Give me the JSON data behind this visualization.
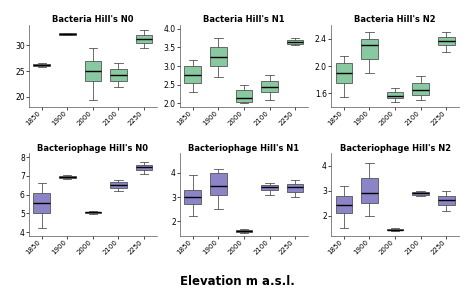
{
  "titles": [
    "Bacteria Hill's N0",
    "Bacteria Hill's N1",
    "Bacteria Hill's N2",
    "Bacteriophage Hill's N0",
    "Bacteriophage Hill's N1",
    "Bacteriophage Hill's N2"
  ],
  "xlabel": "Elevation m a.s.l.",
  "categories": [
    "1850",
    "1900",
    "2000",
    "2100",
    "2250"
  ],
  "bacteria_color": "#88c9a1",
  "bacteriophage_color": "#8b84c7",
  "background_color": "#ffffff",
  "plots": [
    {
      "name": "Bacteria Hill's N0",
      "ylim": [
        18,
        34
      ],
      "yticks": [
        20,
        25,
        30
      ],
      "boxes": [
        {
          "med": 26.2,
          "q1": 26.0,
          "q3": 26.4,
          "whislo": 25.8,
          "whishi": 26.6
        },
        {
          "med": 32.2,
          "q1": 32.1,
          "q3": 32.4,
          "whislo": 32.0,
          "whishi": 32.5
        },
        {
          "med": 25.0,
          "q1": 23.0,
          "q3": 27.0,
          "whislo": 19.5,
          "whishi": 29.5
        },
        {
          "med": 24.3,
          "q1": 23.0,
          "q3": 25.5,
          "whislo": 22.0,
          "whishi": 26.5
        },
        {
          "med": 31.2,
          "q1": 30.5,
          "q3": 32.0,
          "whislo": 29.5,
          "whishi": 33.0
        }
      ]
    },
    {
      "name": "Bacteria Hill's N1",
      "ylim": [
        1.9,
        4.1
      ],
      "yticks": [
        2.0,
        2.5,
        3.0,
        3.5,
        4.0
      ],
      "boxes": [
        {
          "med": 2.75,
          "q1": 2.55,
          "q3": 3.0,
          "whislo": 2.3,
          "whishi": 3.15
        },
        {
          "med": 3.25,
          "q1": 3.0,
          "q3": 3.5,
          "whislo": 2.7,
          "whishi": 3.75
        },
        {
          "med": 2.15,
          "q1": 2.05,
          "q3": 2.35,
          "whislo": 2.0,
          "whishi": 2.5
        },
        {
          "med": 2.45,
          "q1": 2.3,
          "q3": 2.6,
          "whislo": 2.1,
          "whishi": 2.75
        },
        {
          "med": 3.65,
          "q1": 3.6,
          "q3": 3.7,
          "whislo": 3.55,
          "whishi": 3.75
        }
      ]
    },
    {
      "name": "Bacteria Hill's N2",
      "ylim": [
        1.4,
        2.6
      ],
      "yticks": [
        1.6,
        2.0,
        2.4
      ],
      "boxes": [
        {
          "med": 1.9,
          "q1": 1.75,
          "q3": 2.05,
          "whislo": 1.55,
          "whishi": 2.15
        },
        {
          "med": 2.3,
          "q1": 2.1,
          "q3": 2.4,
          "whislo": 1.9,
          "whishi": 2.5
        },
        {
          "med": 1.57,
          "q1": 1.53,
          "q3": 1.62,
          "whislo": 1.48,
          "whishi": 1.68
        },
        {
          "med": 1.65,
          "q1": 1.58,
          "q3": 1.75,
          "whislo": 1.5,
          "whishi": 1.85
        },
        {
          "med": 2.37,
          "q1": 2.3,
          "q3": 2.42,
          "whislo": 2.2,
          "whishi": 2.5
        }
      ]
    },
    {
      "name": "Bacteriophage Hill's N0",
      "ylim": [
        3.8,
        8.2
      ],
      "yticks": [
        4,
        5,
        6,
        7,
        8
      ],
      "boxes": [
        {
          "med": 5.55,
          "q1": 5.0,
          "q3": 6.1,
          "whislo": 4.2,
          "whishi": 6.6
        },
        {
          "med": 6.95,
          "q1": 6.9,
          "q3": 7.0,
          "whislo": 6.85,
          "whishi": 7.05
        },
        {
          "med": 5.05,
          "q1": 5.0,
          "q3": 5.1,
          "whislo": 4.95,
          "whishi": 5.15
        },
        {
          "med": 6.5,
          "q1": 6.35,
          "q3": 6.65,
          "whislo": 6.2,
          "whishi": 6.8
        },
        {
          "med": 7.45,
          "q1": 7.3,
          "q3": 7.6,
          "whislo": 7.1,
          "whishi": 7.75
        }
      ]
    },
    {
      "name": "Bacteriophage Hill's N1",
      "ylim": [
        1.4,
        4.8
      ],
      "yticks": [
        2,
        3,
        4
      ],
      "boxes": [
        {
          "med": 3.0,
          "q1": 2.7,
          "q3": 3.3,
          "whislo": 2.2,
          "whishi": 3.9
        },
        {
          "med": 3.45,
          "q1": 3.1,
          "q3": 4.0,
          "whislo": 2.5,
          "whishi": 4.15
        },
        {
          "med": 1.6,
          "q1": 1.55,
          "q3": 1.65,
          "whislo": 1.5,
          "whishi": 1.7
        },
        {
          "med": 3.4,
          "q1": 3.3,
          "q3": 3.5,
          "whislo": 3.1,
          "whishi": 3.6
        },
        {
          "med": 3.4,
          "q1": 3.2,
          "q3": 3.55,
          "whislo": 3.0,
          "whishi": 3.7
        }
      ]
    },
    {
      "name": "Bacteriophage Hill's N2",
      "ylim": [
        1.2,
        4.5
      ],
      "yticks": [
        2,
        3,
        4
      ],
      "boxes": [
        {
          "med": 2.45,
          "q1": 2.1,
          "q3": 2.8,
          "whislo": 1.5,
          "whishi": 3.2
        },
        {
          "med": 2.9,
          "q1": 2.5,
          "q3": 3.5,
          "whislo": 2.0,
          "whishi": 4.1
        },
        {
          "med": 1.45,
          "q1": 1.42,
          "q3": 1.48,
          "whislo": 1.38,
          "whishi": 1.52
        },
        {
          "med": 2.9,
          "q1": 2.85,
          "q3": 2.95,
          "whislo": 2.8,
          "whishi": 3.0
        },
        {
          "med": 2.65,
          "q1": 2.45,
          "q3": 2.8,
          "whislo": 2.2,
          "whishi": 3.0
        }
      ]
    }
  ]
}
